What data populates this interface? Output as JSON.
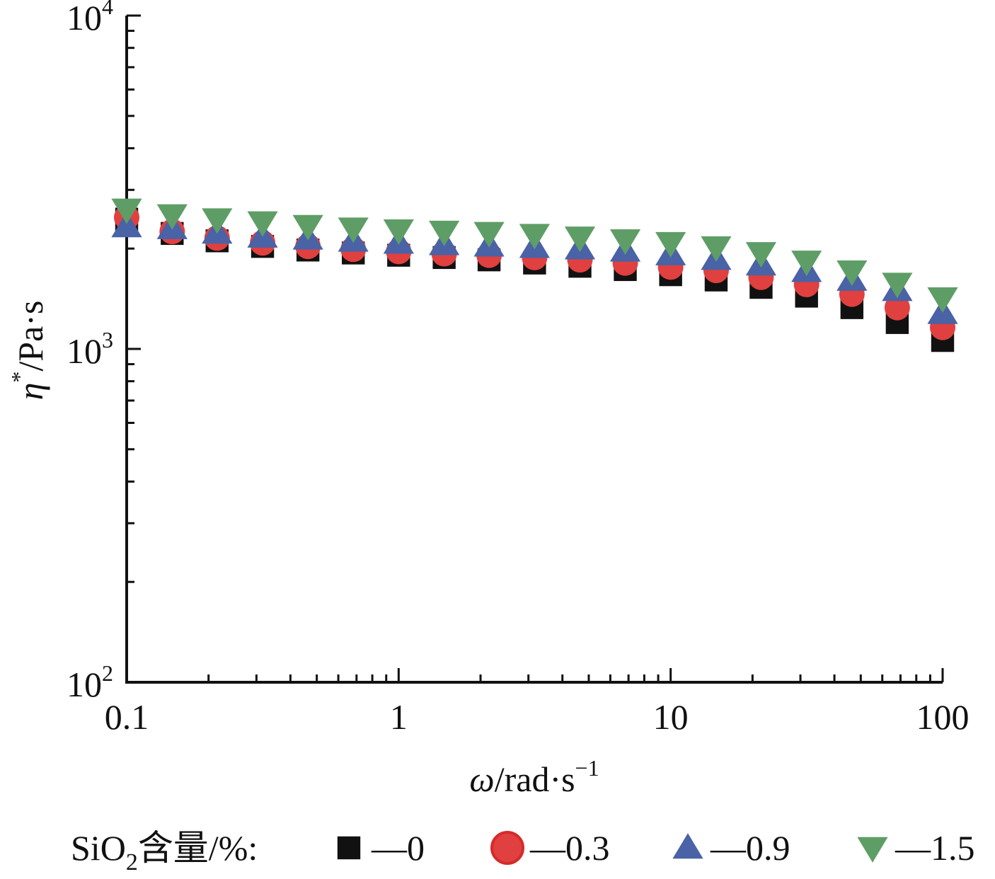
{
  "chart_data": {
    "type": "scatter",
    "xscale": "log",
    "yscale": "log",
    "xlim": [
      0.1,
      100
    ],
    "ylim": [
      100,
      10000
    ],
    "x_ticks": [
      "0.1",
      "1",
      "10",
      "100"
    ],
    "y_ticks": [
      {
        "base": "10",
        "exp": "2"
      },
      {
        "base": "10",
        "exp": "3"
      },
      {
        "base": "10",
        "exp": "4"
      }
    ],
    "xlabel": {
      "symbol": "ω",
      "unit": "/rad·s",
      "exp": "−1"
    },
    "ylabel": {
      "symbol": "η",
      "sup": "*",
      "unit": "/Pa·s"
    },
    "legend": {
      "title_prefix": "SiO",
      "title_sub": "2",
      "title_suffix": "含量/%:",
      "placement": "bottom"
    },
    "x": [
      0.1,
      0.147,
      0.215,
      0.316,
      0.464,
      0.681,
      1.0,
      1.47,
      2.15,
      3.16,
      4.64,
      6.81,
      10.0,
      14.7,
      21.5,
      31.6,
      46.4,
      68.1,
      100
    ],
    "series": [
      {
        "name": "—0",
        "marker": "square",
        "color": "#111111",
        "values": [
          2450,
          2220,
          2110,
          2030,
          1980,
          1940,
          1910,
          1880,
          1850,
          1810,
          1770,
          1730,
          1670,
          1610,
          1530,
          1440,
          1330,
          1200,
          1060
        ]
      },
      {
        "name": "—0.3",
        "marker": "circle",
        "color": "#e0403f",
        "values": [
          2480,
          2250,
          2150,
          2080,
          2030,
          1990,
          1960,
          1930,
          1910,
          1880,
          1850,
          1810,
          1760,
          1720,
          1640,
          1560,
          1460,
          1330,
          1160
        ]
      },
      {
        "name": "—0.9",
        "marker": "triangle-up",
        "color": "#4a62a6",
        "values": [
          2330,
          2300,
          2230,
          2170,
          2140,
          2110,
          2080,
          2060,
          2040,
          2020,
          2000,
          1970,
          1920,
          1860,
          1790,
          1710,
          1610,
          1500,
          1280
        ]
      },
      {
        "name": "—1.5",
        "marker": "triangle-down",
        "color": "#5e9e66",
        "values": [
          2620,
          2520,
          2450,
          2400,
          2340,
          2300,
          2270,
          2250,
          2230,
          2200,
          2160,
          2120,
          2080,
          2020,
          1940,
          1830,
          1710,
          1570,
          1420
        ]
      }
    ]
  }
}
